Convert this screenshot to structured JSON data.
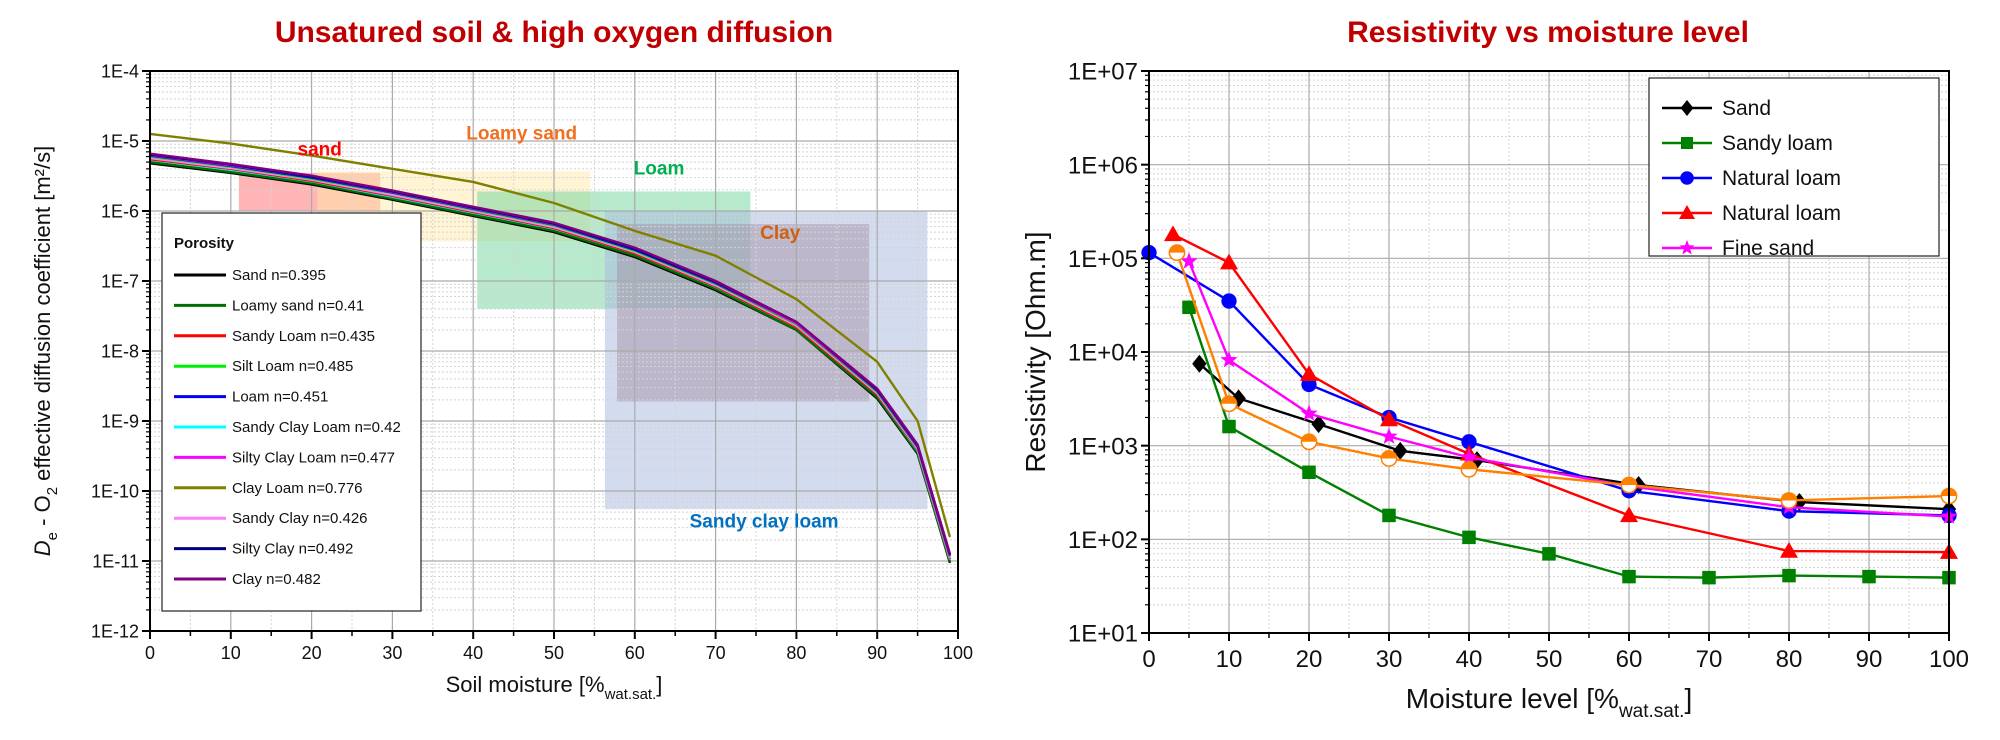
{
  "chart_data": [
    {
      "type": "line",
      "title": "Unsatured soil & high oxygen diffusion",
      "xlabel": {
        "main": "Soil moisture [%",
        "sub": "wat.sat.",
        "end": "]"
      },
      "ylabel": {
        "d": "D",
        "d_sub": "e",
        "mid": " - O",
        "o_sub": "2",
        "end": " effective diffusion coefficient [m²/s]"
      },
      "xlim": [
        0,
        100
      ],
      "ylim": [
        1e-12,
        0.0001
      ],
      "yscale": "log",
      "grid": true,
      "x_ticks": [
        "0",
        "10",
        "20",
        "30",
        "40",
        "50",
        "60",
        "70",
        "80",
        "90",
        "100"
      ],
      "y_ticks": [
        "1E-4",
        "1E-5",
        "1E-6",
        "1E-7",
        "1E-8",
        "1E-9",
        "1E-10",
        "1E-11",
        "1E-12"
      ],
      "legend": {
        "title": "Porosity",
        "placement": "lower-left"
      },
      "x": [
        0,
        10,
        20,
        30,
        40,
        50,
        60,
        70,
        80,
        90,
        95,
        99
      ],
      "series": [
        {
          "name": "Sand n=0.395",
          "color": "#000000",
          "y": [
            4.8e-06,
            3.5e-06,
            2.4e-06,
            1.45e-06,
            8.5e-07,
            5e-07,
            2.2e-07,
            7.4e-08,
            2e-08,
            2.1e-09,
            3.4e-10,
            9.4e-12
          ]
        },
        {
          "name": "Loamy sand n=0.41",
          "color": "#007000",
          "y": [
            5e-06,
            3.6e-06,
            2.5e-06,
            1.5e-06,
            8.8e-07,
            5.2e-07,
            2.3e-07,
            7.7e-08,
            2e-08,
            2.2e-09,
            3.5e-10,
            9.7e-12
          ]
        },
        {
          "name": "Sandy Loam n=0.435",
          "color": "#ff0000",
          "y": [
            5.5e-06,
            4e-06,
            2.7e-06,
            1.65e-06,
            9.7e-07,
            5.7e-07,
            2.5e-07,
            8.4e-08,
            2.2e-08,
            2.4e-09,
            3.9e-10,
            1.07e-11
          ]
        },
        {
          "name": "Silt Loam n=0.485",
          "color": "#00ee00",
          "y": [
            6e-06,
            4.3e-06,
            2.9e-06,
            1.8e-06,
            1.05e-06,
            6.2e-07,
            2.7e-07,
            9.1e-08,
            2.4e-08,
            2.6e-09,
            4.2e-10,
            1.15e-11
          ]
        },
        {
          "name": "Loam n=0.451",
          "color": "#0000ff",
          "y": [
            6.2e-06,
            4.4e-06,
            3e-06,
            1.84e-06,
            1.08e-06,
            6.4e-07,
            2.8e-07,
            9.4e-08,
            2.5e-08,
            2.7e-09,
            4.3e-10,
            1.19e-11
          ]
        },
        {
          "name": "Sandy Clay Loam n=0.42",
          "color": "#00ffff",
          "y": [
            5.4e-06,
            3.9e-06,
            2.66e-06,
            1.6e-06,
            9.5e-07,
            5.6e-07,
            2.5e-07,
            8.3e-08,
            2.2e-08,
            2.4e-09,
            3.8e-10,
            1.05e-11
          ]
        },
        {
          "name": "Silty Clay Loam n=0.477",
          "color": "#ff00ff",
          "y": [
            6.3e-06,
            4.5e-06,
            3.1e-06,
            1.87e-06,
            1.1e-06,
            6.5e-07,
            2.9e-07,
            9.6e-08,
            2.5e-08,
            2.75e-09,
            4.4e-10,
            1.2e-11
          ]
        },
        {
          "name": "Clay Loam n=0.776",
          "color": "#808000",
          "y": [
            1.26e-05,
            9.2e-06,
            6.2e-06,
            4e-06,
            2.6e-06,
            1.3e-06,
            5.2e-07,
            2.3e-07,
            5.5e-08,
            7e-09,
            1e-09,
            2.2e-11
          ]
        },
        {
          "name": "Sandy Clay n=0.426",
          "color": "#ff80ff",
          "y": [
            5.7e-06,
            4.1e-06,
            2.8e-06,
            1.7e-06,
            1e-06,
            5.9e-07,
            2.6e-07,
            8.7e-08,
            2.3e-08,
            2.5e-09,
            4e-10,
            1.1e-11
          ]
        },
        {
          "name": "Silty Clay n=0.492",
          "color": "#000080",
          "y": [
            6.4e-06,
            4.6e-06,
            3.1e-06,
            1.9e-06,
            1.12e-06,
            6.6e-07,
            2.9e-07,
            9.7e-08,
            2.6e-08,
            2.8e-09,
            4.5e-10,
            1.23e-11
          ]
        },
        {
          "name": "Clay n=0.482",
          "color": "#800080",
          "y": [
            6.6e-06,
            4.7e-06,
            3.2e-06,
            1.96e-06,
            1.15e-06,
            6.8e-07,
            3e-07,
            1e-07,
            2.6e-08,
            2.9e-09,
            4.6e-10,
            1.27e-11
          ]
        }
      ],
      "zones": [
        {
          "label": "sand",
          "color": "#ff0000",
          "fill": "#ff6b6b",
          "x": [
            11,
            28.5
          ],
          "y": [
            1e-06,
            3.5e-06
          ],
          "label_at": [
            21,
            6.2e-06
          ]
        },
        {
          "label": "Loamy sand",
          "color": "#f07020",
          "fill": "#ffe9a8",
          "x": [
            20.7,
            54.5
          ],
          "y": [
            3.7e-07,
            3.7e-06
          ],
          "label_at": [
            46,
            1.05e-05
          ]
        },
        {
          "label": "Loam",
          "color": "#00b050",
          "fill": "#6fd39a",
          "x": [
            40.5,
            74.3
          ],
          "y": [
            4e-08,
            1.9e-06
          ],
          "label_at": [
            63,
            3.3e-06
          ]
        },
        {
          "label": "Clay",
          "color": "#d06010",
          "fill": "#a87070",
          "x": [
            57.8,
            89
          ],
          "y": [
            1.9e-09,
            6.5e-07
          ],
          "label_at": [
            78,
            4e-07
          ]
        },
        {
          "label": "Sandy clay loam",
          "color": "#0070c0",
          "fill": "#a8b8e0",
          "x": [
            56.3,
            96.2
          ],
          "y": [
            5.5e-11,
            1e-06
          ],
          "label_at": [
            76,
            3e-11
          ]
        }
      ]
    },
    {
      "type": "line",
      "title": "Resistivity vs moisture level",
      "xlabel": {
        "main": "Moisture level [%",
        "sub": "wat.sat.",
        "end": "]"
      },
      "ylabel": "Resistivity [Ohm.m]",
      "xlim": [
        0,
        100
      ],
      "ylim": [
        10,
        10000000.0
      ],
      "yscale": "log",
      "grid": true,
      "x_ticks": [
        "0",
        "10",
        "20",
        "30",
        "40",
        "50",
        "60",
        "70",
        "80",
        "90",
        "100"
      ],
      "y_ticks": [
        "1E+07",
        "1E+06",
        "1E+05",
        "1E+04",
        "1E+03",
        "1E+02",
        "1E+01"
      ],
      "legend": {
        "placement": "top-right"
      },
      "series": [
        {
          "name": "Sand",
          "color": "#000000",
          "marker": "diamond",
          "x": [
            6.3,
            11.2,
            21.2,
            31.4,
            41,
            61.2,
            81.3,
            100
          ],
          "y": [
            7500,
            3200,
            1700,
            880,
            700,
            380,
            250,
            210
          ]
        },
        {
          "name": "Sandy loam",
          "color": "#008000",
          "marker": "square",
          "x": [
            5,
            10,
            20,
            30,
            40,
            50,
            60,
            70,
            80,
            90,
            100
          ],
          "y": [
            30000,
            1600,
            520,
            180,
            105,
            70,
            40,
            39,
            41,
            40,
            39
          ]
        },
        {
          "name": "Natural loam",
          "color": "#0000ff",
          "marker": "circle",
          "x": [
            0,
            10,
            20,
            30,
            40,
            60,
            80,
            100
          ],
          "y": [
            115000,
            35000,
            4500,
            2000,
            1100,
            330,
            200,
            180
          ]
        },
        {
          "name": "Natural loam",
          "color": "#ff0000",
          "marker": "triangle",
          "x": [
            3,
            10,
            20,
            30,
            40,
            60,
            80,
            100
          ],
          "y": [
            180000,
            90000,
            5800,
            1900,
            820,
            180,
            75,
            73
          ]
        },
        {
          "name": "Fine sand",
          "color": "#ff00ff",
          "marker": "star",
          "x": [
            5,
            10,
            20,
            30,
            40,
            60,
            80,
            100
          ],
          "y": [
            93000,
            8200,
            2200,
            1250,
            750,
            370,
            220,
            175
          ]
        },
        {
          "name": "",
          "color": "#ff8000",
          "marker": "half-circle",
          "in_legend": false,
          "x": [
            3.5,
            10,
            20,
            30,
            40,
            60,
            80,
            100
          ],
          "y": [
            115000,
            2800,
            1100,
            730,
            560,
            380,
            260,
            290
          ]
        }
      ]
    }
  ]
}
